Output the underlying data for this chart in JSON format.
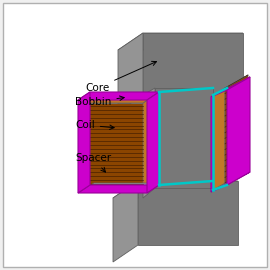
{
  "background_color": "#f0f0f0",
  "border_color": "#b0b0b0",
  "labels": [
    "Core",
    "Bobbin",
    "Coil",
    "Spacer"
  ],
  "font_size": 7.5,
  "gray_light": "#b0b0b0",
  "gray_mid": "#949494",
  "gray_dark": "#787878",
  "gray_darker": "#606060",
  "coil_front": "#8B4500",
  "coil_side": "#C07828",
  "coil_line": "#3A1800",
  "bobbin_col": "#CC00CC",
  "bobbin_edge": "#990099",
  "cyan_col": "#00C8C8",
  "spacer_top": "#a0a0a0",
  "spacer_front": "#888888"
}
